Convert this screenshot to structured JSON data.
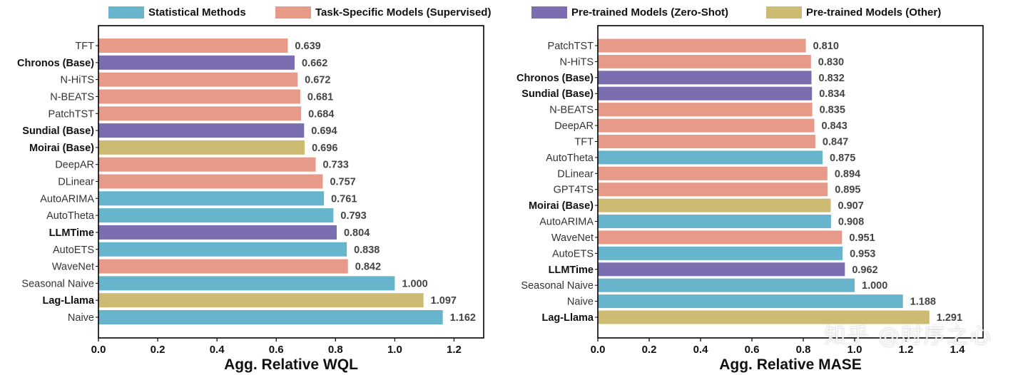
{
  "colors": {
    "statistical": "#67b5cd",
    "supervised": "#e89a89",
    "zeroshot": "#7c6db1",
    "other": "#cebb73"
  },
  "legend": [
    {
      "key": "statistical",
      "label": "Statistical Methods"
    },
    {
      "key": "supervised",
      "label": "Task-Specific Models (Supervised)"
    },
    {
      "key": "zeroshot",
      "label": "Pre-trained Models (Zero-Shot)"
    },
    {
      "key": "other",
      "label": "Pre-trained Models (Other)"
    }
  ],
  "watermark": "知乎 @时序之心",
  "chart_data": [
    {
      "type": "bar",
      "orientation": "horizontal",
      "xlabel": "Agg. Relative WQL",
      "xlim": [
        0,
        1.3
      ],
      "xticks": [
        "0.0",
        "0.2",
        "0.4",
        "0.6",
        "0.8",
        "1.0",
        "1.2"
      ],
      "bars": [
        {
          "label": "TFT",
          "value": 0.639,
          "value_label": "0.639",
          "group": "supervised",
          "bold": false
        },
        {
          "label": "Chronos (Base)",
          "value": 0.662,
          "value_label": "0.662",
          "group": "zeroshot",
          "bold": true
        },
        {
          "label": "N-HiTS",
          "value": 0.672,
          "value_label": "0.672",
          "group": "supervised",
          "bold": false
        },
        {
          "label": "N-BEATS",
          "value": 0.681,
          "value_label": "0.681",
          "group": "supervised",
          "bold": false
        },
        {
          "label": "PatchTST",
          "value": 0.684,
          "value_label": "0.684",
          "group": "supervised",
          "bold": false
        },
        {
          "label": "Sundial (Base)",
          "value": 0.694,
          "value_label": "0.694",
          "group": "zeroshot",
          "bold": true
        },
        {
          "label": "Moirai (Base)",
          "value": 0.696,
          "value_label": "0.696",
          "group": "other",
          "bold": true
        },
        {
          "label": "DeepAR",
          "value": 0.733,
          "value_label": "0.733",
          "group": "supervised",
          "bold": false
        },
        {
          "label": "DLinear",
          "value": 0.757,
          "value_label": "0.757",
          "group": "supervised",
          "bold": false
        },
        {
          "label": "AutoARIMA",
          "value": 0.761,
          "value_label": "0.761",
          "group": "statistical",
          "bold": false
        },
        {
          "label": "AutoTheta",
          "value": 0.793,
          "value_label": "0.793",
          "group": "statistical",
          "bold": false
        },
        {
          "label": "LLMTime",
          "value": 0.804,
          "value_label": "0.804",
          "group": "zeroshot",
          "bold": true
        },
        {
          "label": "AutoETS",
          "value": 0.838,
          "value_label": "0.838",
          "group": "statistical",
          "bold": false
        },
        {
          "label": "WaveNet",
          "value": 0.842,
          "value_label": "0.842",
          "group": "supervised",
          "bold": false
        },
        {
          "label": "Seasonal Naive",
          "value": 1.0,
          "value_label": "1.000",
          "group": "statistical",
          "bold": false
        },
        {
          "label": "Lag-Llama",
          "value": 1.097,
          "value_label": "1.097",
          "group": "other",
          "bold": true
        },
        {
          "label": "Naive",
          "value": 1.162,
          "value_label": "1.162",
          "group": "statistical",
          "bold": false
        }
      ]
    },
    {
      "type": "bar",
      "orientation": "horizontal",
      "xlabel": "Agg. Relative MASE",
      "xlim": [
        0,
        1.5
      ],
      "xticks": [
        "0.0",
        "0.2",
        "0.4",
        "0.6",
        "0.8",
        "1.0",
        "1.2",
        "1.4"
      ],
      "bars": [
        {
          "label": "PatchTST",
          "value": 0.81,
          "value_label": "0.810",
          "group": "supervised",
          "bold": false
        },
        {
          "label": "N-HiTS",
          "value": 0.83,
          "value_label": "0.830",
          "group": "supervised",
          "bold": false
        },
        {
          "label": "Chronos (Base)",
          "value": 0.832,
          "value_label": "0.832",
          "group": "zeroshot",
          "bold": true
        },
        {
          "label": "Sundial (Base)",
          "value": 0.834,
          "value_label": "0.834",
          "group": "zeroshot",
          "bold": true
        },
        {
          "label": "N-BEATS",
          "value": 0.835,
          "value_label": "0.835",
          "group": "supervised",
          "bold": false
        },
        {
          "label": "DeepAR",
          "value": 0.843,
          "value_label": "0.843",
          "group": "supervised",
          "bold": false
        },
        {
          "label": "TFT",
          "value": 0.847,
          "value_label": "0.847",
          "group": "supervised",
          "bold": false
        },
        {
          "label": "AutoTheta",
          "value": 0.875,
          "value_label": "0.875",
          "group": "statistical",
          "bold": false
        },
        {
          "label": "DLinear",
          "value": 0.894,
          "value_label": "0.894",
          "group": "supervised",
          "bold": false
        },
        {
          "label": "GPT4TS",
          "value": 0.895,
          "value_label": "0.895",
          "group": "supervised",
          "bold": false
        },
        {
          "label": "Moirai (Base)",
          "value": 0.907,
          "value_label": "0.907",
          "group": "other",
          "bold": true
        },
        {
          "label": "AutoARIMA",
          "value": 0.908,
          "value_label": "0.908",
          "group": "statistical",
          "bold": false
        },
        {
          "label": "WaveNet",
          "value": 0.951,
          "value_label": "0.951",
          "group": "supervised",
          "bold": false
        },
        {
          "label": "AutoETS",
          "value": 0.953,
          "value_label": "0.953",
          "group": "statistical",
          "bold": false
        },
        {
          "label": "LLMTime",
          "value": 0.962,
          "value_label": "0.962",
          "group": "zeroshot",
          "bold": true
        },
        {
          "label": "Seasonal Naive",
          "value": 1.0,
          "value_label": "1.000",
          "group": "statistical",
          "bold": false
        },
        {
          "label": "Naive",
          "value": 1.188,
          "value_label": "1.188",
          "group": "statistical",
          "bold": false
        },
        {
          "label": "Lag-Llama",
          "value": 1.291,
          "value_label": "1.291",
          "group": "other",
          "bold": true
        }
      ]
    }
  ]
}
